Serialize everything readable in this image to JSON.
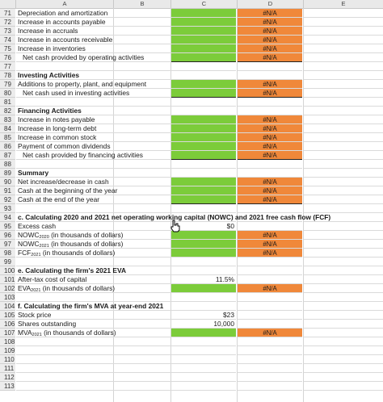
{
  "columns": [
    "A",
    "B",
    "C",
    "D",
    "E"
  ],
  "rows": [
    {
      "n": "71",
      "text": "Depreciation and amortization",
      "c": "",
      "d": "#N/A",
      "cc": "g",
      "dc": "o"
    },
    {
      "n": "72",
      "text": "Increase in accounts payable",
      "c": "",
      "d": "#N/A",
      "cc": "g",
      "dc": "o"
    },
    {
      "n": "73",
      "text": "Increase in accruals",
      "c": "",
      "d": "#N/A",
      "cc": "g",
      "dc": "o"
    },
    {
      "n": "74",
      "text": "Increase in accounts receivable",
      "c": "",
      "d": "#N/A",
      "cc": "g",
      "dc": "o"
    },
    {
      "n": "75",
      "text": "Increase in inventories",
      "c": "",
      "d": "#N/A",
      "cc": "g",
      "dc": "o"
    },
    {
      "n": "76",
      "text": "Net cash provided by operating activities",
      "indent": true,
      "c": "",
      "d": "#N/A",
      "cc": "g",
      "dc": "o"
    },
    {
      "n": "77",
      "text": "",
      "c": "",
      "d": ""
    },
    {
      "n": "78",
      "text": "Investing Activities",
      "bold": true,
      "c": "",
      "d": ""
    },
    {
      "n": "79",
      "text": "Additions to property, plant, and equipment",
      "c": "",
      "d": "#N/A",
      "cc": "g",
      "dc": "o"
    },
    {
      "n": "80",
      "text": "Net cash used in investing activities",
      "indent": true,
      "c": "",
      "d": "#N/A",
      "cc": "g",
      "dc": "o"
    },
    {
      "n": "81",
      "text": "",
      "c": "",
      "d": ""
    },
    {
      "n": "82",
      "text": "Financing Activities",
      "bold": true,
      "c": "",
      "d": ""
    },
    {
      "n": "83",
      "text": "Increase in notes payable",
      "c": "",
      "d": "#N/A",
      "cc": "g",
      "dc": "o"
    },
    {
      "n": "84",
      "text": "Increase in long-term debt",
      "c": "",
      "d": "#N/A",
      "cc": "g",
      "dc": "o"
    },
    {
      "n": "85",
      "text": "Increase in common stock",
      "c": "",
      "d": "#N/A",
      "cc": "g",
      "dc": "o"
    },
    {
      "n": "86",
      "text": "Payment of common dividends",
      "c": "",
      "d": "#N/A",
      "cc": "g",
      "dc": "o"
    },
    {
      "n": "87",
      "text": "Net cash provided by financing activities",
      "indent": true,
      "c": "",
      "d": "#N/A",
      "cc": "g",
      "dc": "o"
    },
    {
      "n": "88",
      "text": "",
      "c": "",
      "d": ""
    },
    {
      "n": "89",
      "text": "Summary",
      "bold": true,
      "c": "",
      "d": ""
    },
    {
      "n": "90",
      "text": "Net increase/decrease in cash",
      "c": "",
      "d": "#N/A",
      "cc": "g",
      "dc": "o"
    },
    {
      "n": "91",
      "text": "Cash at the beginning of the year",
      "c": "",
      "d": "#N/A",
      "cc": "g",
      "dc": "o"
    },
    {
      "n": "92",
      "text": "Cash at the end of the year",
      "c": "",
      "d": "#N/A",
      "cc": "g",
      "dc": "o"
    },
    {
      "n": "93",
      "text": "",
      "c": "",
      "d": ""
    },
    {
      "n": "94",
      "text": "c.  Calculating 2020 and 2021 net operating working capital (NOWC) and 2021 free cash flow (FCF)",
      "bold": true,
      "c": "",
      "d": ""
    },
    {
      "n": "95",
      "text": "Excess cash",
      "c": "$0",
      "d": ""
    },
    {
      "n": "96",
      "text": "NOWC",
      "sub": "2020",
      "text2": " (in thousands of dollars)",
      "c": "",
      "d": "#N/A",
      "cc": "g",
      "dc": "o"
    },
    {
      "n": "97",
      "text": "NOWC",
      "sub": "2021",
      "text2": " (in thousands of dollars)",
      "c": "",
      "d": "#N/A",
      "cc": "g",
      "dc": "o"
    },
    {
      "n": "98",
      "text": "FCF",
      "sub": "2021",
      "text2": " (in thousands of dollars)",
      "c": "",
      "d": "#N/A",
      "cc": "g",
      "dc": "o"
    },
    {
      "n": "99",
      "text": "",
      "c": "",
      "d": ""
    },
    {
      "n": "100",
      "text": "e.  Calculating the firm's 2021 EVA",
      "bold": true,
      "c": "",
      "d": ""
    },
    {
      "n": "101",
      "text": "After-tax cost of capital",
      "c": "11.5%",
      "d": ""
    },
    {
      "n": "102",
      "text": "EVA",
      "sub": "2021",
      "text2": " (in thousands of dollars)",
      "c": "",
      "d": "#N/A",
      "cc": "g",
      "dc": "o"
    },
    {
      "n": "103",
      "text": "",
      "c": "",
      "d": ""
    },
    {
      "n": "104",
      "text": "f.  Calculating the firm's MVA at year-end 2021",
      "bold": true,
      "c": "",
      "d": ""
    },
    {
      "n": "105",
      "text": "Stock price",
      "c": "$23",
      "d": ""
    },
    {
      "n": "106",
      "text": "Shares outstanding",
      "c": "10,000",
      "d": ""
    },
    {
      "n": "107",
      "text": "MVA",
      "sub": "2021",
      "text2": " (in thousands of dollars)",
      "c": "",
      "d": "#N/A",
      "cc": "g",
      "dc": "o"
    },
    {
      "n": "108",
      "text": "",
      "c": "",
      "d": ""
    },
    {
      "n": "109",
      "text": "",
      "c": "",
      "d": ""
    },
    {
      "n": "110",
      "text": "",
      "c": "",
      "d": ""
    },
    {
      "n": "111",
      "text": "",
      "c": "",
      "d": ""
    },
    {
      "n": "112",
      "text": "",
      "c": "",
      "d": ""
    },
    {
      "n": "113",
      "text": "",
      "c": "",
      "d": ""
    }
  ],
  "colors": {
    "input_green": "#7ccc3a",
    "output_orange": "#f0883a",
    "header_gray": "#e9e9e9"
  },
  "icons": {
    "cursor": "hand-pointer-icon"
  }
}
